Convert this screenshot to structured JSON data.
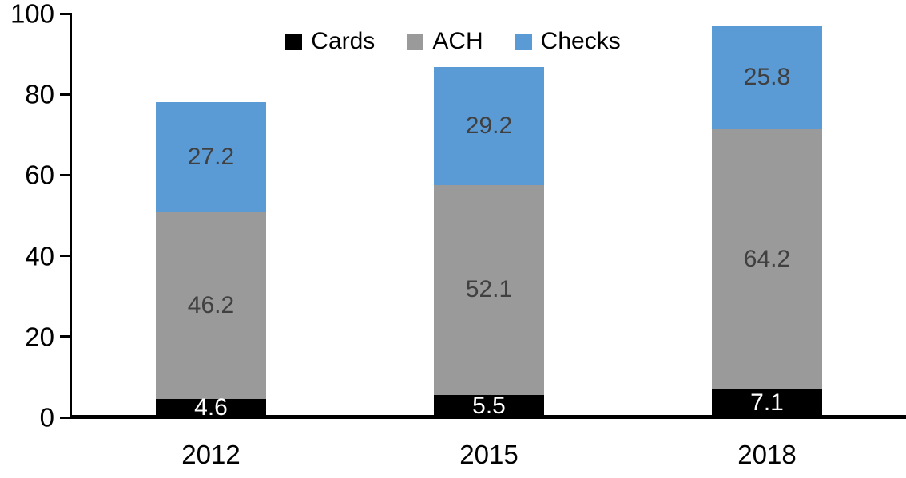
{
  "chart_data": {
    "type": "bar",
    "stacked": true,
    "title": "",
    "categories": [
      "2012",
      "2015",
      "2018"
    ],
    "series": [
      {
        "name": "Cards",
        "color": "#000000",
        "label_color": "#ffffff",
        "values": [
          4.6,
          5.5,
          7.1
        ]
      },
      {
        "name": "ACH",
        "color": "#9a9a9a",
        "label_color": "#404040",
        "values": [
          46.2,
          52.1,
          64.2
        ]
      },
      {
        "name": "Checks",
        "color": "#5b9bd5",
        "label_color": "#404040",
        "values": [
          27.2,
          29.2,
          25.8
        ]
      }
    ],
    "stack_totals": [
      78.0,
      86.8,
      97.1
    ],
    "xlabel": "",
    "ylabel": "",
    "ylim": [
      0,
      100
    ],
    "y_ticks": [
      0,
      20,
      40,
      60,
      80,
      100
    ],
    "grid": false,
    "legend_position": "top-center",
    "axis_color": "#000000",
    "background_color": "#ffffff"
  }
}
